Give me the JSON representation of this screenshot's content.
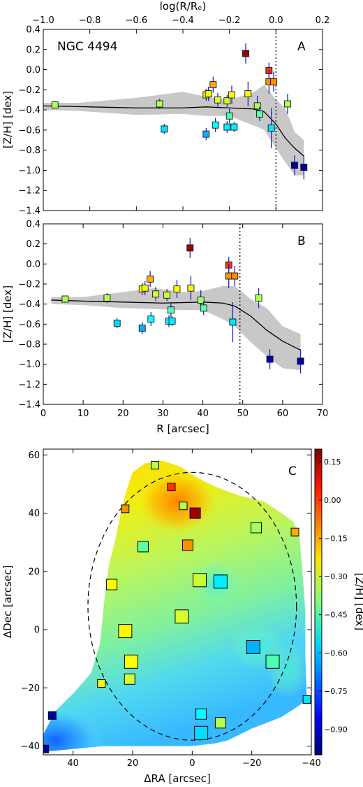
{
  "chart_data": [
    {
      "id": "A",
      "type": "scatter",
      "panel_label": "A",
      "annotation": "NGC 4494",
      "xlabel_top": "log(R/Rₑ)",
      "ylabel": "[Z/H] [dex]",
      "xlim": [
        -1.0,
        0.2
      ],
      "ylim": [
        -1.4,
        0.4
      ],
      "x_ticks": [
        "−1.0",
        "−0.8",
        "−0.6",
        "−0.4",
        "−0.2",
        "0.0",
        "0.2"
      ],
      "y_ticks": [
        "0.4",
        "0.2",
        "0.0",
        "−0.2",
        "−0.4",
        "−0.6",
        "−0.8",
        "−1.0",
        "−1.2",
        "−1.4"
      ],
      "reference_line_x": 0.0,
      "points": [
        {
          "x": -0.95,
          "y": -0.35,
          "err": 0.03
        },
        {
          "x": -0.5,
          "y": -0.34,
          "err": 0.05
        },
        {
          "x": -0.48,
          "y": -0.59,
          "err": 0.05
        },
        {
          "x": -0.3,
          "y": -0.25,
          "err": 0.06
        },
        {
          "x": -0.29,
          "y": -0.24,
          "err": 0.07
        },
        {
          "x": -0.3,
          "y": -0.64,
          "err": 0.06
        },
        {
          "x": -0.27,
          "y": -0.15,
          "err": 0.08
        },
        {
          "x": -0.25,
          "y": -0.3,
          "err": 0.07
        },
        {
          "x": -0.26,
          "y": -0.55,
          "err": 0.07
        },
        {
          "x": -0.21,
          "y": -0.31,
          "err": 0.06
        },
        {
          "x": -0.19,
          "y": -0.25,
          "err": 0.09
        },
        {
          "x": -0.2,
          "y": -0.46,
          "err": 0.07
        },
        {
          "x": -0.21,
          "y": -0.57,
          "err": 0.06
        },
        {
          "x": -0.18,
          "y": -0.57,
          "err": 0.05
        },
        {
          "x": -0.13,
          "y": 0.16,
          "err": 0.1
        },
        {
          "x": -0.12,
          "y": -0.24,
          "err": 0.12
        },
        {
          "x": -0.08,
          "y": -0.36,
          "err": 0.1
        },
        {
          "x": -0.07,
          "y": -0.44,
          "err": 0.07
        },
        {
          "x": -0.03,
          "y": -0.01,
          "err": 0.08
        },
        {
          "x": -0.03,
          "y": -0.12,
          "err": 0.12
        },
        {
          "x": -0.01,
          "y": -0.12,
          "err": 0.1
        },
        {
          "x": -0.02,
          "y": -0.58,
          "err": 0.2
        },
        {
          "x": 0.05,
          "y": -0.34,
          "err": 0.1
        },
        {
          "x": 0.08,
          "y": -0.95,
          "err": 0.1
        },
        {
          "x": 0.12,
          "y": -0.97,
          "err": 0.12
        }
      ],
      "trend_line": [
        [
          -1.0,
          -0.36
        ],
        [
          -0.8,
          -0.37
        ],
        [
          -0.6,
          -0.38
        ],
        [
          -0.4,
          -0.38
        ],
        [
          -0.3,
          -0.37
        ],
        [
          -0.2,
          -0.38
        ],
        [
          -0.1,
          -0.39
        ],
        [
          -0.05,
          -0.42
        ],
        [
          0.0,
          -0.54
        ],
        [
          0.04,
          -0.68
        ],
        [
          0.08,
          -0.78
        ],
        [
          0.12,
          -0.86
        ]
      ],
      "band_upper": [
        [
          -1.0,
          -0.33
        ],
        [
          -0.85,
          -0.33
        ],
        [
          -0.6,
          -0.28
        ],
        [
          -0.4,
          -0.22
        ],
        [
          -0.3,
          -0.27
        ],
        [
          -0.2,
          -0.3
        ],
        [
          -0.1,
          -0.23
        ],
        [
          -0.05,
          -0.15
        ],
        [
          0.0,
          -0.3
        ],
        [
          0.04,
          -0.38
        ],
        [
          0.08,
          -0.62
        ],
        [
          0.12,
          -0.7
        ]
      ],
      "band_lower": [
        [
          -1.0,
          -0.4
        ],
        [
          -0.85,
          -0.41
        ],
        [
          -0.6,
          -0.45
        ],
        [
          -0.4,
          -0.44
        ],
        [
          -0.3,
          -0.46
        ],
        [
          -0.2,
          -0.46
        ],
        [
          -0.1,
          -0.55
        ],
        [
          -0.05,
          -0.6
        ],
        [
          0.0,
          -0.78
        ],
        [
          0.04,
          -0.92
        ],
        [
          0.08,
          -1.05
        ],
        [
          0.12,
          -1.05
        ]
      ]
    },
    {
      "id": "B",
      "type": "scatter",
      "panel_label": "B",
      "xlabel": "R [arcsec]",
      "ylabel": "[Z/H] [dex]",
      "xlim": [
        0,
        70
      ],
      "ylim": [
        -1.4,
        0.4
      ],
      "x_ticks": [
        "0",
        "10",
        "20",
        "30",
        "40",
        "50",
        "60",
        "70"
      ],
      "y_ticks": [
        "0.4",
        "0.2",
        "0.0",
        "−0.2",
        "−0.4",
        "−0.6",
        "−0.8",
        "−1.0",
        "−1.2",
        "−1.4"
      ],
      "reference_line_x": 49.3,
      "points": [
        {
          "x": 5.5,
          "y": -0.35,
          "err": 0.03
        },
        {
          "x": 16.0,
          "y": -0.34,
          "err": 0.05
        },
        {
          "x": 18.5,
          "y": -0.59,
          "err": 0.05
        },
        {
          "x": 24.8,
          "y": -0.25,
          "err": 0.06
        },
        {
          "x": 25.5,
          "y": -0.24,
          "err": 0.07
        },
        {
          "x": 24.8,
          "y": -0.64,
          "err": 0.06
        },
        {
          "x": 26.8,
          "y": -0.15,
          "err": 0.08
        },
        {
          "x": 28.2,
          "y": -0.3,
          "err": 0.07
        },
        {
          "x": 27.0,
          "y": -0.55,
          "err": 0.07
        },
        {
          "x": 31.0,
          "y": -0.31,
          "err": 0.06
        },
        {
          "x": 33.5,
          "y": -0.25,
          "err": 0.09
        },
        {
          "x": 32.0,
          "y": -0.46,
          "err": 0.07
        },
        {
          "x": 31.5,
          "y": -0.57,
          "err": 0.06
        },
        {
          "x": 32.3,
          "y": -0.57,
          "err": 0.05
        },
        {
          "x": 36.8,
          "y": 0.16,
          "err": 0.1
        },
        {
          "x": 37.0,
          "y": -0.24,
          "err": 0.12
        },
        {
          "x": 39.5,
          "y": -0.36,
          "err": 0.1
        },
        {
          "x": 40.2,
          "y": -0.44,
          "err": 0.07
        },
        {
          "x": 46.5,
          "y": -0.01,
          "err": 0.08
        },
        {
          "x": 46.5,
          "y": -0.12,
          "err": 0.12
        },
        {
          "x": 48.0,
          "y": -0.12,
          "err": 0.1
        },
        {
          "x": 47.5,
          "y": -0.58,
          "err": 0.2
        },
        {
          "x": 54.0,
          "y": -0.34,
          "err": 0.1
        },
        {
          "x": 56.8,
          "y": -0.95,
          "err": 0.1
        },
        {
          "x": 64.5,
          "y": -0.97,
          "err": 0.12
        }
      ],
      "trend_line": [
        [
          2,
          -0.36
        ],
        [
          10,
          -0.37
        ],
        [
          20,
          -0.38
        ],
        [
          30,
          -0.39
        ],
        [
          40,
          -0.38
        ],
        [
          45,
          -0.39
        ],
        [
          48,
          -0.42
        ],
        [
          52,
          -0.52
        ],
        [
          56,
          -0.66
        ],
        [
          60,
          -0.77
        ],
        [
          64.5,
          -0.86
        ]
      ],
      "band_upper": [
        [
          2,
          -0.33
        ],
        [
          10,
          -0.33
        ],
        [
          20,
          -0.28
        ],
        [
          28,
          -0.24
        ],
        [
          35,
          -0.28
        ],
        [
          40,
          -0.27
        ],
        [
          45,
          -0.22
        ],
        [
          48,
          -0.22
        ],
        [
          52,
          -0.35
        ],
        [
          56,
          -0.44
        ],
        [
          60,
          -0.62
        ],
        [
          64.5,
          -0.7
        ]
      ],
      "band_lower": [
        [
          2,
          -0.4
        ],
        [
          10,
          -0.41
        ],
        [
          20,
          -0.44
        ],
        [
          28,
          -0.45
        ],
        [
          35,
          -0.46
        ],
        [
          40,
          -0.46
        ],
        [
          45,
          -0.55
        ],
        [
          48,
          -0.62
        ],
        [
          52,
          -0.78
        ],
        [
          56,
          -0.92
        ],
        [
          60,
          -1.04
        ],
        [
          64.5,
          -1.06
        ]
      ]
    },
    {
      "id": "C",
      "type": "heatmap",
      "panel_label": "C",
      "xlabel": "ΔRA [arcsec]",
      "ylabel": "ΔDec [arcsec]",
      "colorbar_label": "[Z/H] [dex]",
      "xlim": [
        50,
        -40
      ],
      "ylim": [
        -43,
        62
      ],
      "x_ticks": [
        "40",
        "20",
        "0",
        "−20",
        "−40"
      ],
      "y_ticks": [
        "60",
        "40",
        "20",
        "0",
        "−20",
        "−40"
      ],
      "colorbar_range": [
        -1.0,
        0.2
      ],
      "colorbar_ticks": [
        "0.15",
        "0.00",
        "−0.15",
        "−0.30",
        "−0.45",
        "−0.60",
        "−0.75",
        "−0.90"
      ],
      "ellipse": {
        "center": [
          0,
          8
        ],
        "semi_major": 46,
        "semi_minor": 35
      },
      "points": [
        {
          "x": 12.5,
          "y": 56.5,
          "z": -0.34,
          "size": "small"
        },
        {
          "x": 7.0,
          "y": 49.0,
          "z": -0.01,
          "size": "small"
        },
        {
          "x": 3.0,
          "y": 42.5,
          "z": -0.34,
          "size": "small"
        },
        {
          "x": 22.5,
          "y": 41.5,
          "z": -0.12,
          "size": "small"
        },
        {
          "x": -1.0,
          "y": 40.0,
          "z": 0.16,
          "size": "medium"
        },
        {
          "x": 16.5,
          "y": 28.5,
          "z": -0.44,
          "size": "medium"
        },
        {
          "x": 1.5,
          "y": 29.0,
          "z": -0.12,
          "size": "medium"
        },
        {
          "x": -21.5,
          "y": 35.0,
          "z": -0.36,
          "size": "medium"
        },
        {
          "x": -34.5,
          "y": 33.5,
          "z": -0.15,
          "size": "small"
        },
        {
          "x": 27.0,
          "y": 15.5,
          "z": -0.25,
          "size": "medium"
        },
        {
          "x": -2.5,
          "y": 17.0,
          "z": -0.31,
          "size": "large"
        },
        {
          "x": -9.5,
          "y": 16.5,
          "z": -0.57,
          "size": "large"
        },
        {
          "x": 3.5,
          "y": 4.5,
          "z": -0.3,
          "size": "large"
        },
        {
          "x": 22.5,
          "y": -0.5,
          "z": -0.24,
          "size": "large"
        },
        {
          "x": -20.5,
          "y": -6.0,
          "z": -0.64,
          "size": "large"
        },
        {
          "x": 20.5,
          "y": -11.0,
          "z": -0.25,
          "size": "large"
        },
        {
          "x": -27.0,
          "y": -11.0,
          "z": -0.46,
          "size": "large"
        },
        {
          "x": 21.0,
          "y": -17.0,
          "z": -0.3,
          "size": "medium"
        },
        {
          "x": 30.5,
          "y": -18.5,
          "z": -0.24,
          "size": "small"
        },
        {
          "x": -38.5,
          "y": -24.0,
          "z": -0.58,
          "size": "small"
        },
        {
          "x": -3.0,
          "y": -29.0,
          "z": -0.55,
          "size": "medium"
        },
        {
          "x": -9.5,
          "y": -32.0,
          "z": -0.34,
          "size": "medium"
        },
        {
          "x": -3.0,
          "y": -35.5,
          "z": -0.59,
          "size": "large"
        },
        {
          "x": 47.0,
          "y": -29.5,
          "z": -0.95,
          "size": "small"
        },
        {
          "x": 49.5,
          "y": -41.0,
          "z": -0.97,
          "size": "small"
        }
      ]
    }
  ]
}
